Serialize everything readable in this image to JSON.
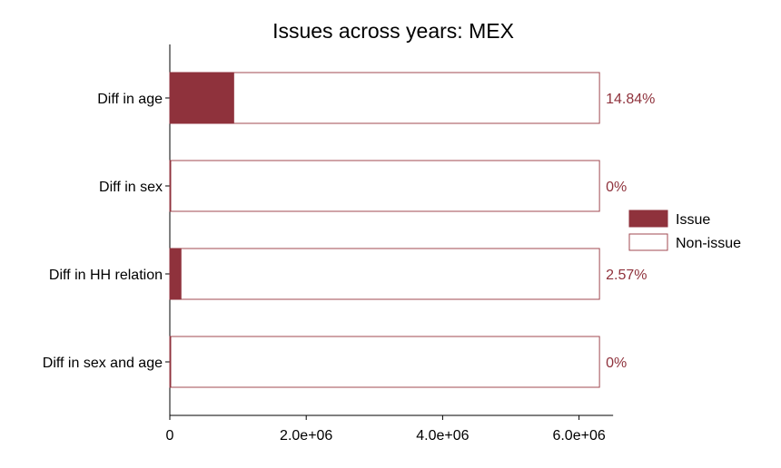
{
  "chart_data": {
    "type": "bar",
    "orientation": "horizontal",
    "stacked": true,
    "title": "Issues across years: MEX",
    "xlabel": "",
    "ylabel": "",
    "xlim": [
      0,
      6500000
    ],
    "xticks": [
      {
        "value": 0,
        "label": "0"
      },
      {
        "value": 2000000,
        "label": "2.0e+06"
      },
      {
        "value": 4000000,
        "label": "4.0e+06"
      },
      {
        "value": 6000000,
        "label": "6.0e+06"
      }
    ],
    "categories": [
      "Diff in age",
      "Diff in sex",
      "Diff in HH relation",
      "Diff in sex and age"
    ],
    "series": [
      {
        "name": "Issue",
        "color": "#8f323c",
        "values": [
          935000,
          0,
          162000,
          0
        ]
      },
      {
        "name": "Non-issue",
        "color": "#ffffff",
        "stroke": "#a04a52",
        "values": [
          5365000,
          6300000,
          6138000,
          6300000
        ]
      }
    ],
    "data_labels": [
      "14.84%",
      "0%",
      "2.57%",
      "0%"
    ],
    "label_color": "#8f323c",
    "legend_position": "right",
    "grid": false
  }
}
